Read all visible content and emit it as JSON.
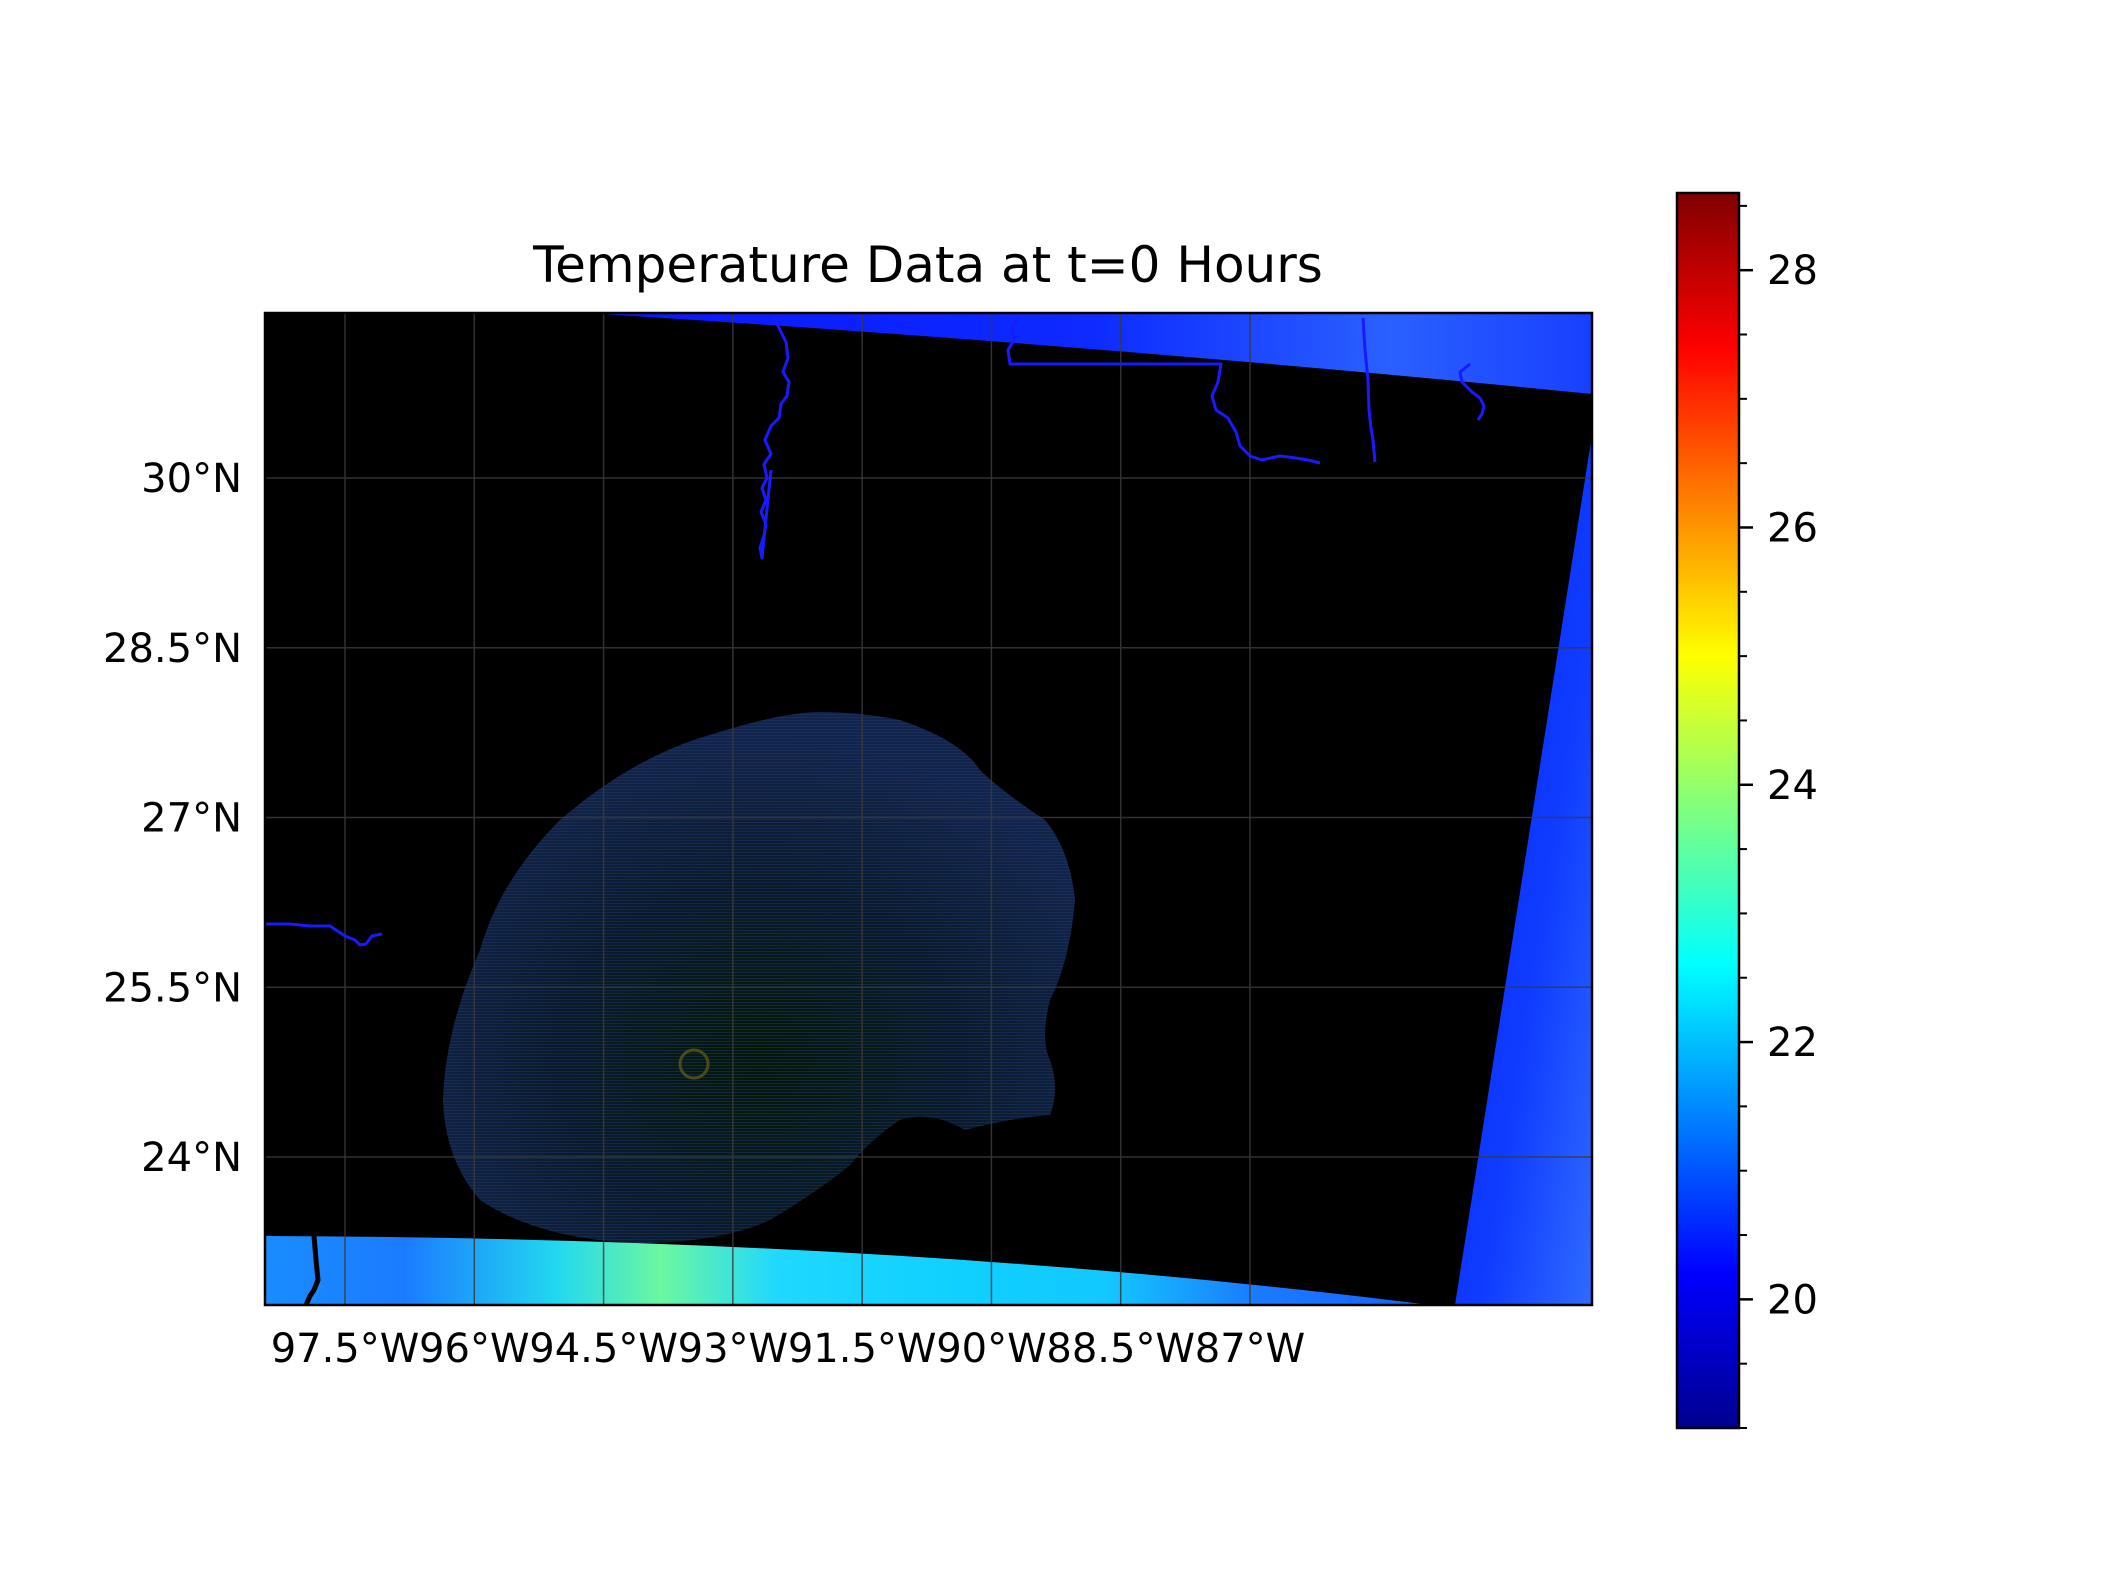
{
  "title": "Temperature Data at t=0 Hours",
  "chart_data": {
    "type": "heatmap",
    "title": "Temperature Data at t=0 Hours",
    "map_extent": {
      "lon": [
        -98,
        -86.25
      ],
      "lat": [
        22.8,
        30.7
      ]
    },
    "grid": true,
    "x_ticks": [
      {
        "value": -97.5,
        "label": "97.5°W"
      },
      {
        "value": -96,
        "label": "96°W"
      },
      {
        "value": -94.5,
        "label": "94.5°W"
      },
      {
        "value": -93,
        "label": "93°W"
      },
      {
        "value": -91.5,
        "label": "91.5°W"
      },
      {
        "value": -90,
        "label": "90°W"
      },
      {
        "value": -88.5,
        "label": "88.5°W"
      },
      {
        "value": -87,
        "label": "87°W"
      }
    ],
    "y_ticks": [
      {
        "value": 30,
        "label": "30°N"
      },
      {
        "value": 28.5,
        "label": "28.5°N"
      },
      {
        "value": 27,
        "label": "27°N"
      },
      {
        "value": 25.5,
        "label": "25.5°N"
      },
      {
        "value": 24,
        "label": "24°N"
      }
    ],
    "colorbar": {
      "colormap": "jet",
      "range": [
        19,
        28.6
      ],
      "ticks": [
        20,
        22,
        24,
        26,
        28
      ],
      "tick_labels": [
        "20",
        "22",
        "24",
        "26",
        "28"
      ],
      "minor_step": 0.5
    },
    "colors": {
      "background": "#000000",
      "coastline": "#1a1aff",
      "grid": "#3a3a3a"
    }
  }
}
